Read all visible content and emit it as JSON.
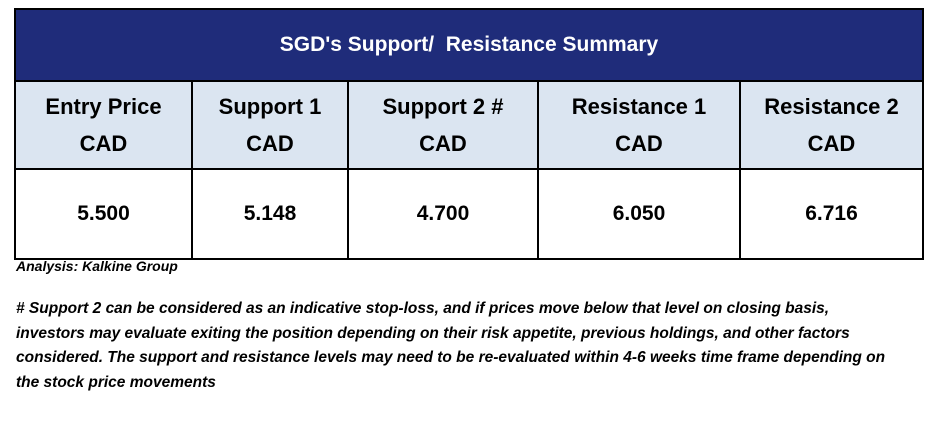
{
  "table": {
    "title": "SGD's Support/  Resistance Summary",
    "columns": [
      {
        "line1": "Entry Price",
        "line2": "CAD",
        "value": "5.500"
      },
      {
        "line1": "Support 1",
        "line2": "CAD",
        "value": "5.148"
      },
      {
        "line1": "Support 2 #",
        "line2": "CAD",
        "value": "4.700"
      },
      {
        "line1": "Resistance 1",
        "line2": "CAD",
        "value": "6.050"
      },
      {
        "line1": "Resistance 2",
        "line2": "CAD",
        "value": "6.716"
      }
    ]
  },
  "source": "Analysis: Kalkine Group",
  "footnote": "# Support 2 can be considered as an indicative stop-loss, and if prices move below that level on closing basis, investors may evaluate exiting the position depending on their risk appetite, previous holdings, and other factors considered. The support and resistance levels may need to be re-evaluated within 4-6 weeks time frame depending on the stock price movements",
  "colors": {
    "title_background": "#1f2c7a",
    "header_background": "#dbe5f1",
    "border": "#000000"
  }
}
